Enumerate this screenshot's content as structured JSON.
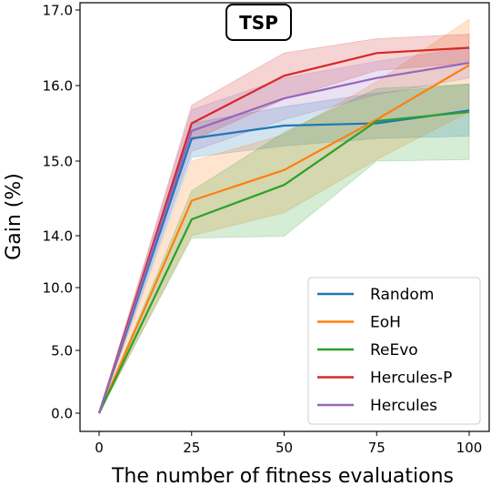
{
  "chart_data": {
    "type": "line",
    "title": "TSP",
    "xlabel": "The number of fitness evaluations",
    "ylabel": "Gain (%)",
    "x": [
      0,
      25,
      50,
      75,
      100
    ],
    "xticks": [
      "0",
      "25",
      "50",
      "75",
      "100"
    ],
    "yticks": [
      {
        "label": "0.0",
        "pos": 0
      },
      {
        "label": "5.0",
        "pos": 1
      },
      {
        "label": "10.0",
        "pos": 2
      },
      {
        "label": "14.0",
        "pos": 3
      },
      {
        "label": "15.0",
        "pos": 4
      },
      {
        "label": "16.0",
        "pos": 5
      },
      {
        "label": "17.0",
        "pos": 6
      }
    ],
    "xlim": [
      0,
      100
    ],
    "grid": false,
    "legend_position": "bottom-right",
    "series": [
      {
        "name": "Random",
        "color": "#1f77b4",
        "values": [
          0,
          15.3,
          15.47,
          15.5,
          15.67
        ],
        "lower": [
          0,
          15.05,
          15.2,
          15.3,
          15.33
        ],
        "upper": [
          0,
          15.5,
          15.72,
          15.9,
          16.02
        ]
      },
      {
        "name": "EoH",
        "color": "#ff7f0e",
        "values": [
          0,
          14.47,
          14.88,
          15.55,
          16.27
        ],
        "lower": [
          0,
          14.0,
          14.31,
          15.02,
          15.65
        ],
        "upper": [
          0,
          15.0,
          15.35,
          16.05,
          16.88
        ]
      },
      {
        "name": "ReEvo",
        "color": "#2ca02c",
        "values": [
          0,
          14.22,
          14.68,
          15.53,
          15.65
        ],
        "lower": [
          0,
          13.82,
          13.96,
          15.0,
          15.02
        ],
        "upper": [
          0,
          14.6,
          15.38,
          15.96,
          16.02
        ]
      },
      {
        "name": "Hercules-P",
        "color": "#d62728",
        "values": [
          0,
          15.5,
          16.13,
          16.43,
          16.5
        ],
        "lower": [
          0,
          15.27,
          15.82,
          16.2,
          16.3
        ],
        "upper": [
          0,
          15.74,
          16.43,
          16.62,
          16.68
        ]
      },
      {
        "name": "Hercules",
        "color": "#9467bd",
        "values": [
          0,
          15.4,
          15.83,
          16.1,
          16.3
        ],
        "lower": [
          0,
          15.13,
          15.55,
          15.88,
          16.1
        ],
        "upper": [
          0,
          15.68,
          16.1,
          16.32,
          16.5
        ]
      }
    ]
  }
}
